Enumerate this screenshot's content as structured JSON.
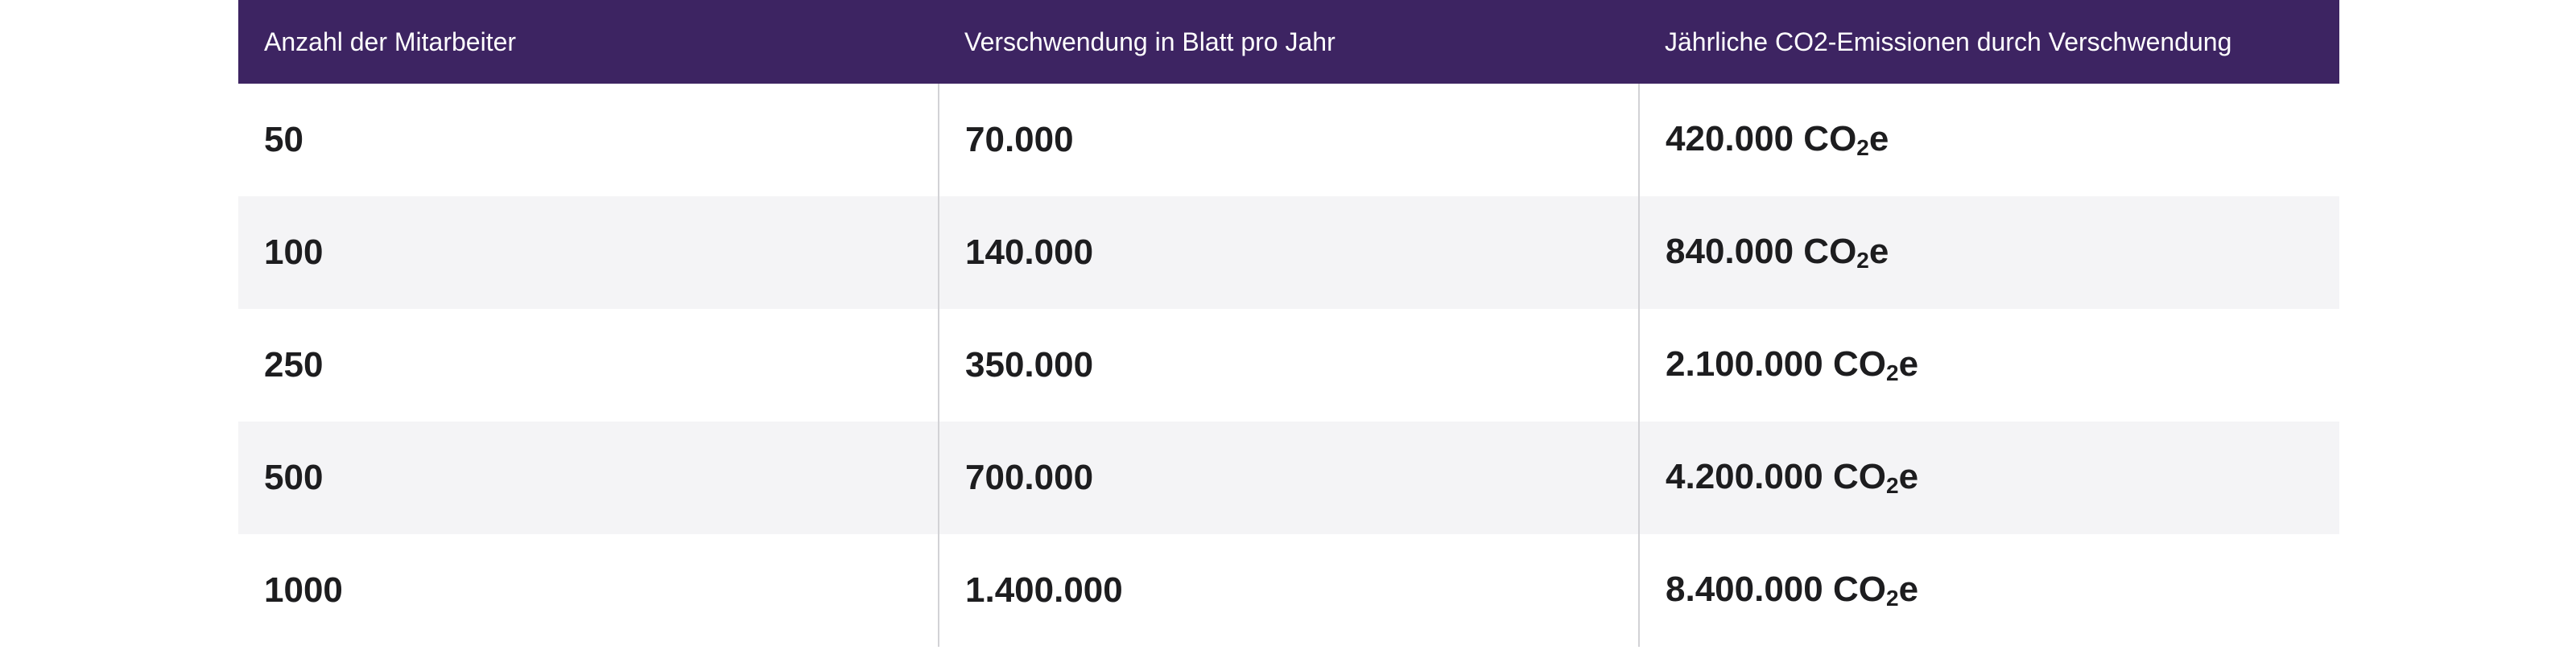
{
  "table": {
    "headers": [
      "Anzahl der Mitarbeiter",
      "Verschwendung in Blatt pro Jahr",
      "Jährliche CO2-Emissionen durch Verschwendung"
    ],
    "emission_unit_prefix": "CO",
    "emission_unit_sub": "2",
    "emission_unit_suffix": "e",
    "rows": [
      {
        "employees": "50",
        "sheets": "70.000",
        "emissions": "420.000"
      },
      {
        "employees": "100",
        "sheets": "140.000",
        "emissions": "840.000"
      },
      {
        "employees": "250",
        "sheets": "350.000",
        "emissions": "2.100.000"
      },
      {
        "employees": "500",
        "sheets": "700.000",
        "emissions": "4.200.000"
      },
      {
        "employees": "1000",
        "sheets": "1.400.000",
        "emissions": "8.400.000"
      }
    ]
  }
}
